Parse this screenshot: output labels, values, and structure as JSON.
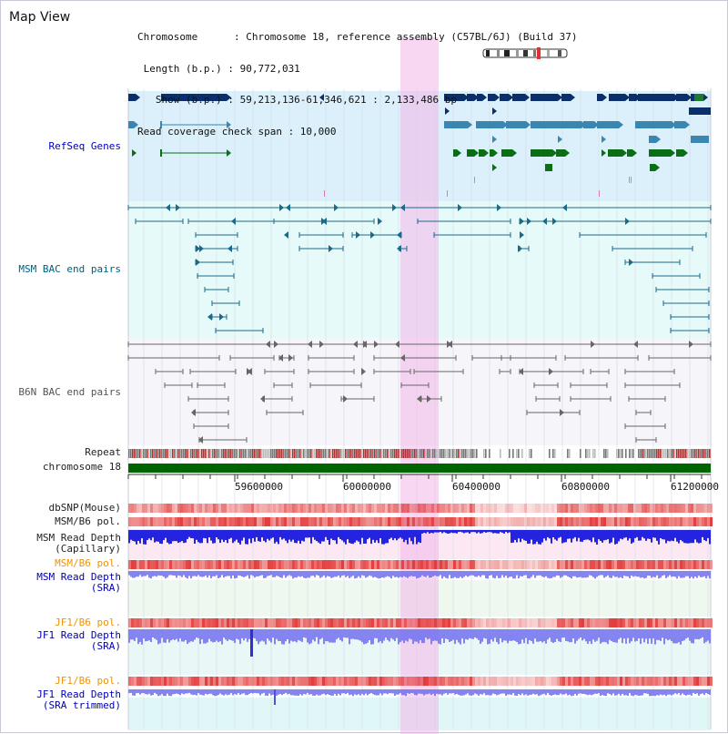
{
  "header": {
    "title": "Map View",
    "info_lines": [
      "Chromosome      : Chromosome 18, reference assembly (C57BL/6J) (Build 37)",
      " Length (b.p.) : 90,772,031",
      "   Show (b.p.) : 59,213,136-61,346,621 : 2,133,486 bp",
      "Read coverage check span : 10,000"
    ]
  },
  "tracks": {
    "refseq": "RefSeq Genes",
    "msm_bac": "MSM BAC end pairs",
    "b6n_bac": "B6N BAC end pairs",
    "repeat": "Repeat",
    "chromosome": "chromosome 18",
    "dbsnp": "dbSNP(Mouse)",
    "msm_b6_pol_1": "MSM/B6 pol.",
    "msm_depth_cap_1": "MSM Read Depth",
    "msm_depth_cap_2": "(Capillary)",
    "msm_b6_pol_2": "MSM/B6 pol.",
    "msm_depth_sra_1": "MSM Read Depth",
    "msm_depth_sra_2": "(SRA)",
    "jf1_b6_pol_1": "JF1/B6 pol.",
    "jf1_depth_1": "JF1 Read Depth",
    "jf1_depth_2": "(SRA)",
    "jf1_b6_pol_2": "JF1/B6 pol.",
    "jf1_trim_1": "JF1 Read Depth",
    "jf1_trim_2": "(SRA trimmed)"
  },
  "axis": {
    "ticks": [
      "59600000",
      "60000000",
      "60400000",
      "60800000",
      "61200000"
    ]
  },
  "colors": {
    "refseq_navy": "#0b2f6b",
    "refseq_teal": "#3a86b0",
    "refseq_green": "#0b6e14",
    "msm_bac": "#1a6a8a",
    "b6n_bac": "#666666",
    "highlight": "#f2b6ea",
    "chromosome_bar": "#006400",
    "depth_blue": "#2424e0",
    "depth_light_blue": "#7070f0",
    "pol_red": "#e33b3b"
  }
}
